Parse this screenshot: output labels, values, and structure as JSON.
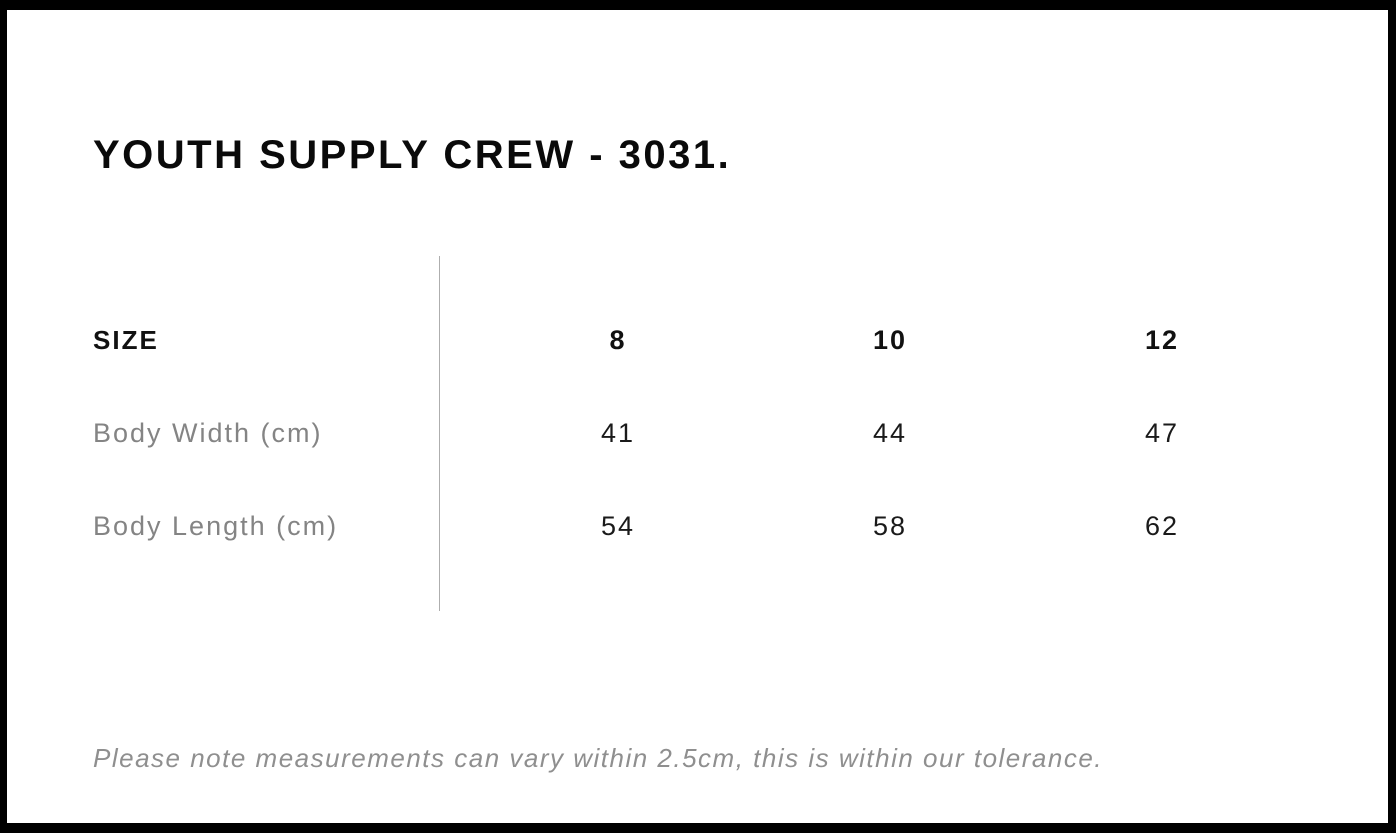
{
  "page": {
    "title": "YOUTH SUPPLY CREW - 3031."
  },
  "size_chart": {
    "header_label": "SIZE",
    "columns": [
      "8",
      "10",
      "12"
    ],
    "rows": [
      {
        "label": "Body Width (cm)",
        "values": [
          "41",
          "44",
          "47"
        ]
      },
      {
        "label": "Body Length (cm)",
        "values": [
          "54",
          "58",
          "62"
        ]
      }
    ]
  },
  "note": {
    "text": "Please note measurements can vary within 2.5cm, this is within our tolerance."
  },
  "colors": {
    "frame_border": "#000000",
    "title_text": "#0a0a0a",
    "header_text": "#111111",
    "value_text": "#1a1a1a",
    "label_gray": "#848484",
    "note_gray": "#8f8f8f",
    "divider_gray": "#aeaeae",
    "background": "#ffffff"
  }
}
